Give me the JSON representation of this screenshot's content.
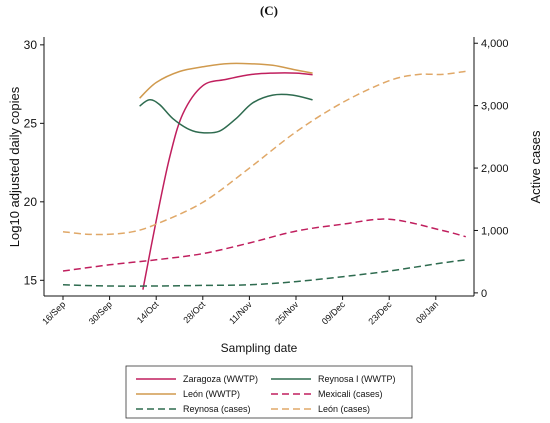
{
  "chart_data": {
    "type": "line",
    "panel_label": "(C)",
    "xlabel": "Sampling date",
    "ylabel_left": "Log10 adjusted daily copies",
    "ylabel_right": "Active cases",
    "x_ticks": [
      "16/Sep",
      "30/Sep",
      "14/Oct",
      "28/Oct",
      "11/Nov",
      "25/Nov",
      "09/Dec",
      "23/Dec",
      "08/Jan"
    ],
    "ylim_left": [
      14,
      30.5
    ],
    "ylim_right": [
      -50,
      4100
    ],
    "y_ticks_left": [
      {
        "value": 15,
        "label": "15"
      },
      {
        "value": 20,
        "label": "20"
      },
      {
        "value": 25,
        "label": "25"
      },
      {
        "value": 30,
        "label": "30"
      }
    ],
    "y_ticks_right": [
      {
        "value": 0,
        "label": "0"
      },
      {
        "value": 1000,
        "label": "1,000"
      },
      {
        "value": 2000,
        "label": "2,000"
      },
      {
        "value": 3000,
        "label": "3,000"
      },
      {
        "value": 4000,
        "label": "4,000"
      }
    ],
    "grid": false,
    "legend_position": "bottom",
    "series": [
      {
        "name": "Zaragoza (WWTP)",
        "axis": "left",
        "color": "#c01f5e",
        "dash": "solid",
        "x": [
          "2020-10-10",
          "2020-10-14",
          "2020-10-18",
          "2020-10-22",
          "2020-10-28",
          "2020-11-04",
          "2020-11-11",
          "2020-11-18",
          "2020-11-25",
          "2020-11-30"
        ],
        "y": [
          14.4,
          18.8,
          22.8,
          25.6,
          27.4,
          27.8,
          28.1,
          28.2,
          28.2,
          28.1
        ]
      },
      {
        "name": "Reynosa I (WWTP)",
        "axis": "left",
        "color": "#2e6b4f",
        "dash": "solid",
        "x": [
          "2020-10-09",
          "2020-10-12",
          "2020-10-15",
          "2020-10-19",
          "2020-10-24",
          "2020-10-28",
          "2020-11-02",
          "2020-11-07",
          "2020-11-12",
          "2020-11-18",
          "2020-11-24",
          "2020-11-30"
        ],
        "y": [
          26.1,
          26.5,
          26.2,
          25.3,
          24.6,
          24.4,
          24.5,
          25.3,
          26.3,
          26.8,
          26.8,
          26.5
        ]
      },
      {
        "name": "León (WWTP)",
        "axis": "left",
        "color": "#d09a4e",
        "dash": "solid",
        "x": [
          "2020-10-09",
          "2020-10-14",
          "2020-10-21",
          "2020-10-28",
          "2020-11-04",
          "2020-11-11",
          "2020-11-18",
          "2020-11-25",
          "2020-11-30"
        ],
        "y": [
          26.6,
          27.6,
          28.3,
          28.6,
          28.8,
          28.8,
          28.7,
          28.4,
          28.2
        ]
      },
      {
        "name": "Mexicali (cases)",
        "axis": "right",
        "color": "#c01f5e",
        "dash": "dashed",
        "x": [
          "2020-09-16",
          "2020-09-30",
          "2020-10-14",
          "2020-10-28",
          "2020-11-11",
          "2020-11-25",
          "2020-12-09",
          "2020-12-23",
          "2021-01-08",
          "2021-01-15"
        ],
        "y": [
          350,
          450,
          530,
          630,
          800,
          990,
          1100,
          1180,
          1000,
          900
        ]
      },
      {
        "name": "Reynosa (cases)",
        "axis": "right",
        "color": "#2e6b4f",
        "dash": "dashed",
        "x": [
          "2020-09-16",
          "2020-09-30",
          "2020-10-14",
          "2020-10-28",
          "2020-11-11",
          "2020-11-25",
          "2020-12-09",
          "2020-12-23",
          "2021-01-08",
          "2021-01-15"
        ],
        "y": [
          130,
          110,
          110,
          120,
          130,
          180,
          260,
          350,
          480,
          530
        ]
      },
      {
        "name": "León (cases)",
        "axis": "right",
        "color": "#e0a868",
        "dash": "dashed",
        "x": [
          "2020-09-16",
          "2020-09-23",
          "2020-09-30",
          "2020-10-07",
          "2020-10-14",
          "2020-10-28",
          "2020-11-11",
          "2020-11-25",
          "2020-12-09",
          "2020-12-23",
          "2021-01-01",
          "2021-01-08",
          "2021-01-15"
        ],
        "y": [
          980,
          940,
          940,
          980,
          1100,
          1450,
          2000,
          2580,
          3050,
          3400,
          3500,
          3500,
          3550
        ]
      }
    ]
  }
}
